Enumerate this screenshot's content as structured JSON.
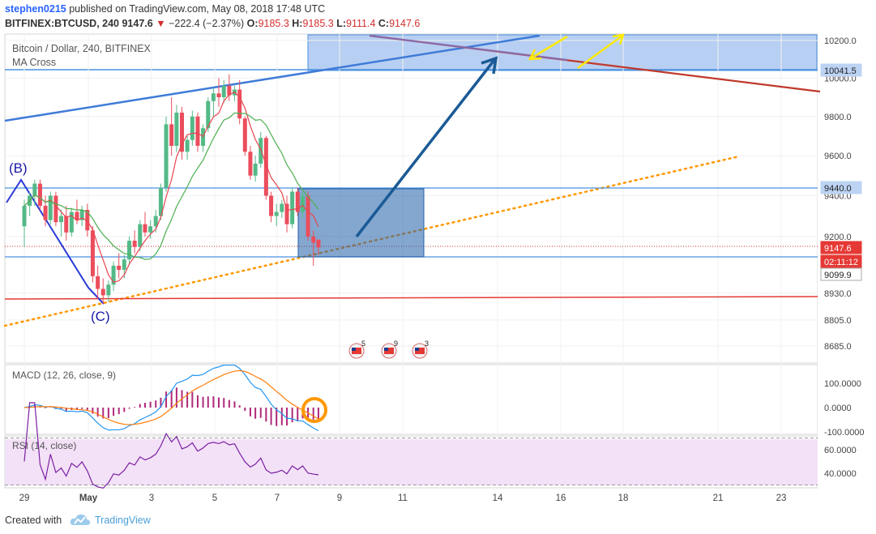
{
  "header": {
    "author": "stephen0215",
    "published_text": " published on TradingView.com, May 08, 2018 17:48 UTC",
    "symbol": "BITFINEX:BTCUSD, 240",
    "last": "9147.6",
    "change": "−222.4 (−2.37%)",
    "o_label": "O:",
    "o_value": "9185.3",
    "h_label": "H:",
    "h_value": "9185.3",
    "l_label": "L:",
    "l_value": "9111.4",
    "c_label": "C:",
    "c_value": "9147.6"
  },
  "legend": {
    "title": "Bitcoin / Dollar, 240, BITFINEX",
    "indicator": "MA Cross"
  },
  "colors": {
    "up_candle": "#53b987",
    "down_candle": "#eb4d5c",
    "ma_fast": "#e8454f",
    "ma_slow": "#4caf50",
    "macd": "#2196f3",
    "signal": "#ff7f0e",
    "hist": "#b0287a",
    "rsi": "#7b1fa2",
    "zone_top": "#4a90e2",
    "zone_mid": "#1f5fa8",
    "arrow_big": "#1a5a96",
    "arrow_small": "#ffea00",
    "support_dotted": "#ff9800",
    "support_red": "#e53935",
    "resist_brown": "#c0392b"
  },
  "footer": {
    "created_with": "Created with",
    "brand": "TradingView"
  },
  "chart_data": [
    {
      "type": "candlestick",
      "title": "Bitcoin / Dollar, 240, BITFINEX",
      "yscale": "log",
      "ylim": [
        8620,
        10280
      ],
      "y_ticks": [
        8685.0,
        8805.0,
        8930.0,
        9200.0,
        9400.0,
        9600.0,
        9800.0,
        10000.0,
        10200.0
      ],
      "x_ticks": [
        "29",
        "May",
        "3",
        "5",
        "7",
        "9",
        "11",
        "14",
        "16",
        "18",
        "21",
        "23"
      ],
      "price_labels": [
        {
          "text": "10041.5",
          "value": 10041.5
        },
        {
          "text": "9440.0",
          "value": 9440.0
        },
        {
          "text": "9147.6",
          "value": 9147.6
        },
        {
          "text": "02:11:12",
          "value": 9115
        },
        {
          "text": "9099.9",
          "value": 9099.9
        }
      ],
      "wave_labels": [
        {
          "text": "(B)",
          "day": 29.2,
          "price": 9520
        },
        {
          "text": "(C)",
          "day": 31.9,
          "price": 8880
        }
      ],
      "event_badges": [
        "5",
        "9",
        "3"
      ],
      "candles_ohlc": [
        [
          29.0,
          9250,
          9380,
          9150,
          9350
        ],
        [
          29.17,
          9350,
          9420,
          9300,
          9400
        ],
        [
          29.33,
          9400,
          9480,
          9350,
          9460
        ],
        [
          29.5,
          9460,
          9480,
          9330,
          9350
        ],
        [
          29.67,
          9350,
          9400,
          9250,
          9280
        ],
        [
          29.83,
          9280,
          9420,
          9260,
          9400
        ],
        [
          30.0,
          9400,
          9420,
          9250,
          9270
        ],
        [
          30.17,
          9270,
          9330,
          9200,
          9300
        ],
        [
          30.33,
          9300,
          9350,
          9180,
          9220
        ],
        [
          30.5,
          9220,
          9340,
          9200,
          9320
        ],
        [
          30.67,
          9320,
          9380,
          9260,
          9280
        ],
        [
          30.83,
          9280,
          9350,
          9250,
          9330
        ],
        [
          31.0,
          9330,
          9360,
          9200,
          9230
        ],
        [
          31.17,
          9230,
          9250,
          8980,
          9010
        ],
        [
          31.33,
          9010,
          9060,
          8900,
          8950
        ],
        [
          31.5,
          8950,
          9000,
          8880,
          8920
        ],
        [
          31.67,
          8920,
          8990,
          8890,
          8970
        ],
        [
          31.83,
          8970,
          9080,
          8940,
          9060
        ],
        [
          32.0,
          9060,
          9120,
          9000,
          9040
        ],
        [
          32.17,
          9040,
          9110,
          9000,
          9090
        ],
        [
          32.33,
          9090,
          9200,
          9070,
          9180
        ],
        [
          32.5,
          9180,
          9230,
          9120,
          9150
        ],
        [
          32.67,
          9150,
          9280,
          9130,
          9260
        ],
        [
          32.83,
          9260,
          9320,
          9200,
          9220
        ],
        [
          33.0,
          9220,
          9280,
          9190,
          9250
        ],
        [
          33.17,
          9250,
          9330,
          9220,
          9300
        ],
        [
          33.33,
          9300,
          9460,
          9280,
          9440
        ],
        [
          33.5,
          9440,
          9800,
          9420,
          9760
        ],
        [
          33.67,
          9760,
          9900,
          9600,
          9650
        ],
        [
          33.83,
          9650,
          9860,
          9620,
          9820
        ],
        [
          34.0,
          9820,
          9850,
          9580,
          9620
        ],
        [
          34.17,
          9620,
          9700,
          9580,
          9680
        ],
        [
          34.33,
          9680,
          9830,
          9650,
          9800
        ],
        [
          34.5,
          9800,
          9820,
          9620,
          9650
        ],
        [
          34.67,
          9650,
          9760,
          9620,
          9740
        ],
        [
          34.83,
          9740,
          9900,
          9720,
          9880
        ],
        [
          35.0,
          9880,
          9950,
          9800,
          9920
        ],
        [
          35.17,
          9920,
          10000,
          9850,
          9900
        ],
        [
          35.33,
          9900,
          9990,
          9870,
          9960
        ],
        [
          35.5,
          9960,
          10020,
          9880,
          9910
        ],
        [
          35.67,
          9910,
          9960,
          9880,
          9940
        ],
        [
          35.83,
          9940,
          9990,
          9760,
          9790
        ],
        [
          36.0,
          9790,
          9800,
          9600,
          9620
        ],
        [
          36.17,
          9620,
          9650,
          9480,
          9500
        ],
        [
          36.33,
          9500,
          9600,
          9470,
          9560
        ],
        [
          36.5,
          9560,
          9720,
          9540,
          9690
        ],
        [
          36.67,
          9690,
          9700,
          9380,
          9400
        ],
        [
          36.83,
          9400,
          9420,
          9270,
          9300
        ],
        [
          37.0,
          9300,
          9360,
          9250,
          9320
        ],
        [
          37.17,
          9320,
          9380,
          9290,
          9360
        ],
        [
          37.33,
          9360,
          9400,
          9220,
          9260
        ],
        [
          37.5,
          9260,
          9440,
          9240,
          9420
        ],
        [
          37.67,
          9420,
          9440,
          9300,
          9320
        ],
        [
          37.83,
          9320,
          9420,
          9290,
          9400
        ],
        [
          38.0,
          9400,
          9420,
          9180,
          9200
        ],
        [
          38.17,
          9200,
          9230,
          9060,
          9170
        ],
        [
          38.33,
          9185.3,
          9185.3,
          9111.4,
          9147.6
        ]
      ]
    },
    {
      "type": "line",
      "title": "MACD (12, 26, close, 9)",
      "y_ticks": [
        100.0,
        0.0,
        -100.0
      ]
    },
    {
      "type": "line",
      "title": "RSI (14, close)",
      "y_ticks": [
        60.0,
        40.0
      ]
    }
  ]
}
